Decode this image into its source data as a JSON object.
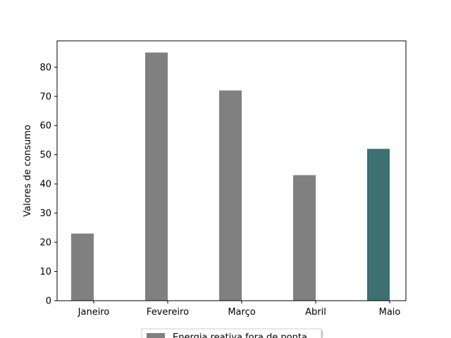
{
  "chart_data": {
    "type": "bar",
    "categories": [
      "Janeiro",
      "Fevereiro",
      "Março",
      "Abril",
      "Maio"
    ],
    "series": [
      {
        "name": "Energia reativa fora de ponta",
        "values": [
          23,
          85,
          72,
          43,
          52
        ],
        "color": "#808080",
        "highlight_color": "#3d7070",
        "highlight_index": 4
      }
    ],
    "title": "",
    "xlabel": "",
    "ylabel": "Valores de consumo",
    "ylim": [
      0,
      89
    ],
    "yticks": [
      0,
      10,
      20,
      30,
      40,
      50,
      60,
      70,
      80
    ],
    "grid": false,
    "legend_position": "bottom-center"
  }
}
